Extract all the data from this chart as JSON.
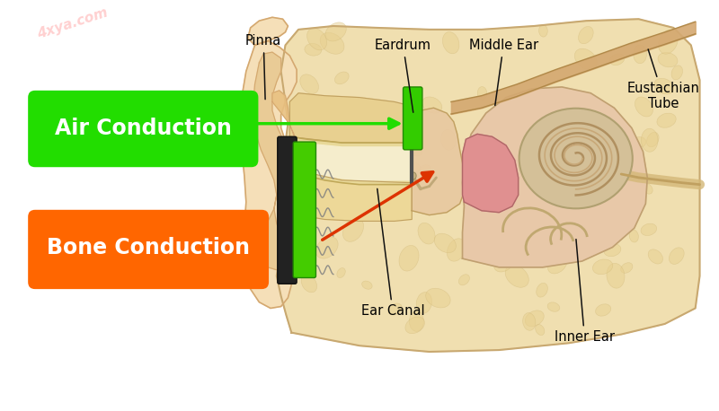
{
  "bg_color": "#ffffff",
  "bone_conduction_label": "Bone Conduction",
  "air_conduction_label": "Air Conduction",
  "bone_conduction_color": "#FF6600",
  "air_conduction_color": "#22DD00",
  "label_text_color": "#ffffff",
  "annotation_color": "#111111",
  "bone_arrow_color": "#DD3300",
  "air_arrow_color": "#22DD00",
  "watermark": "4xya.com",
  "watermark_color": "#ffaaaa",
  "watermark_alpha": 0.55,
  "ear_skin_light": "#F5DFB8",
  "ear_skin_mid": "#E8C890",
  "ear_skin_dark": "#D4A870",
  "ear_inner_pink": "#E8B0A0",
  "ear_cochlea_tan": "#D4C090",
  "bone_device_dark": "#222222",
  "bone_device_green": "#44CC00",
  "air_eardrum_green": "#33CC00"
}
